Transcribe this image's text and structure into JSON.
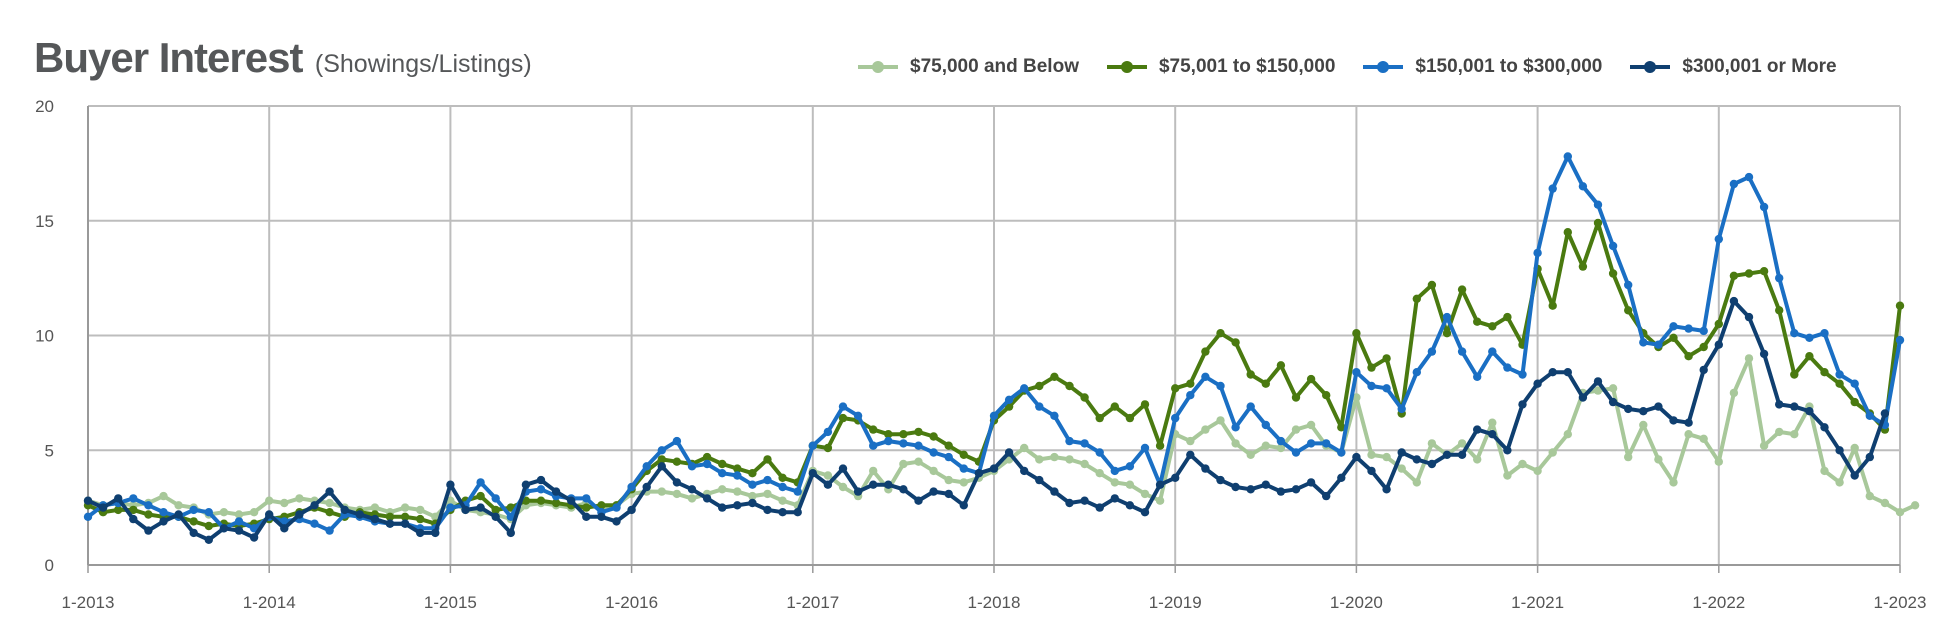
{
  "title": "Buyer Interest",
  "subtitle": "(Showings/Listings)",
  "legend": [
    {
      "label": "$75,000 and Below",
      "color": "#a8c89a"
    },
    {
      "label": "$75,001 to $150,000",
      "color": "#4a7a10"
    },
    {
      "label": "$150,001 to $300,000",
      "color": "#1a6fc4"
    },
    {
      "label": "$300,001 or More",
      "color": "#0f3f70"
    }
  ],
  "chart_data": {
    "type": "line",
    "ylim": [
      0,
      20
    ],
    "yticks": [
      "0",
      "5",
      "10",
      "15",
      "20"
    ],
    "x_labels": [
      "1-2013",
      "1-2014",
      "1-2015",
      "1-2016",
      "1-2017",
      "1-2018",
      "1-2019",
      "1-2020",
      "1-2021",
      "1-2022",
      "1-2023"
    ],
    "x_start": "2013-01",
    "x_end": "2023-01",
    "grid": true,
    "legend_position": "top-right",
    "series": [
      {
        "name": "$75,000 and Below",
        "color": "#a8c89a",
        "values": [
          2.8,
          2.6,
          2.7,
          2.6,
          2.7,
          3.0,
          2.6,
          2.5,
          2.2,
          2.3,
          2.2,
          2.3,
          2.8,
          2.7,
          2.9,
          2.8,
          2.7,
          2.5,
          2.4,
          2.5,
          2.3,
          2.5,
          2.4,
          2.1,
          2.8,
          2.4,
          2.3,
          2.2,
          2.0,
          2.6,
          2.7,
          2.6,
          2.5,
          2.7,
          2.4,
          2.6,
          3.1,
          3.2,
          3.2,
          3.1,
          2.9,
          3.1,
          3.3,
          3.2,
          3.0,
          3.1,
          2.8,
          2.6,
          4.1,
          3.9,
          3.4,
          3.0,
          4.1,
          3.3,
          4.4,
          4.5,
          4.1,
          3.7,
          3.6,
          3.8,
          4.1,
          4.6,
          5.1,
          4.6,
          4.7,
          4.6,
          4.4,
          4.0,
          3.6,
          3.5,
          3.1,
          2.8,
          5.7,
          5.4,
          5.9,
          6.3,
          5.3,
          4.8,
          5.2,
          5.1,
          5.9,
          6.1,
          5.2,
          4.9,
          7.3,
          4.8,
          4.7,
          4.2,
          3.6,
          5.3,
          4.8,
          5.3,
          4.6,
          6.2,
          3.9,
          4.4,
          4.1,
          4.9,
          5.7,
          7.5,
          7.6,
          7.7,
          4.7,
          6.1,
          4.6,
          3.6,
          5.7,
          5.5,
          4.5,
          7.5,
          9.0,
          5.2,
          5.8,
          5.7,
          6.9,
          4.1,
          3.6,
          5.1,
          3.0,
          2.7,
          2.3,
          2.6
        ]
      },
      {
        "name": "$75,001 to $150,000",
        "color": "#4a7a10",
        "values": [
          2.6,
          2.3,
          2.4,
          2.4,
          2.2,
          2.1,
          2.1,
          1.9,
          1.7,
          1.8,
          1.7,
          1.8,
          2.0,
          2.1,
          2.3,
          2.5,
          2.3,
          2.1,
          2.3,
          2.2,
          2.1,
          2.1,
          2.0,
          1.8,
          2.4,
          2.8,
          3.0,
          2.4,
          2.5,
          2.8,
          2.8,
          2.7,
          2.6,
          2.5,
          2.6,
          2.6,
          3.3,
          4.1,
          4.6,
          4.5,
          4.4,
          4.7,
          4.4,
          4.2,
          4.0,
          4.6,
          3.8,
          3.6,
          5.2,
          5.1,
          6.4,
          6.3,
          5.9,
          5.7,
          5.7,
          5.8,
          5.6,
          5.2,
          4.8,
          4.5,
          6.3,
          6.9,
          7.6,
          7.8,
          8.2,
          7.8,
          7.3,
          6.4,
          6.9,
          6.4,
          7.0,
          5.2,
          7.7,
          7.9,
          9.3,
          10.1,
          9.7,
          8.3,
          7.9,
          8.7,
          7.3,
          8.1,
          7.4,
          6.0,
          10.1,
          8.6,
          9.0,
          6.6,
          11.6,
          12.2,
          10.1,
          12.0,
          10.6,
          10.4,
          10.8,
          9.6,
          12.9,
          11.3,
          14.5,
          13.0,
          14.9,
          12.7,
          11.1,
          10.1,
          9.5,
          9.9,
          9.1,
          9.5,
          10.5,
          12.6,
          12.7,
          12.8,
          11.1,
          8.3,
          9.1,
          8.4,
          7.9,
          7.1,
          6.6,
          5.9,
          11.3
        ]
      },
      {
        "name": "$150,001 to $300,000",
        "color": "#1a6fc4",
        "values": [
          2.1,
          2.6,
          2.7,
          2.9,
          2.6,
          2.3,
          2.1,
          2.4,
          2.3,
          1.6,
          1.9,
          1.6,
          2.1,
          1.9,
          2.0,
          1.8,
          1.5,
          2.2,
          2.1,
          1.9,
          1.8,
          1.8,
          1.6,
          1.6,
          2.5,
          2.6,
          3.6,
          2.9,
          2.1,
          3.2,
          3.3,
          3.0,
          2.9,
          2.9,
          2.3,
          2.5,
          3.4,
          4.3,
          5.0,
          5.4,
          4.3,
          4.4,
          4.0,
          3.9,
          3.5,
          3.7,
          3.4,
          3.2,
          5.2,
          5.8,
          6.9,
          6.5,
          5.2,
          5.4,
          5.3,
          5.2,
          4.9,
          4.7,
          4.2,
          4.0,
          6.5,
          7.2,
          7.7,
          6.9,
          6.5,
          5.4,
          5.3,
          4.9,
          4.1,
          4.3,
          5.1,
          3.5,
          6.4,
          7.4,
          8.2,
          7.8,
          6.0,
          6.9,
          6.1,
          5.4,
          4.9,
          5.3,
          5.3,
          4.9,
          8.4,
          7.8,
          7.7,
          6.8,
          8.4,
          9.3,
          10.8,
          9.3,
          8.2,
          9.3,
          8.6,
          8.3,
          13.6,
          16.4,
          17.8,
          16.5,
          15.7,
          13.9,
          12.2,
          9.7,
          9.6,
          10.4,
          10.3,
          10.2,
          14.2,
          16.6,
          16.9,
          15.6,
          12.5,
          10.1,
          9.9,
          10.1,
          8.3,
          7.9,
          6.5,
          6.1,
          9.8
        ]
      },
      {
        "name": "$300,001 or More",
        "color": "#0f3f70",
        "values": [
          2.8,
          2.5,
          2.9,
          2.0,
          1.5,
          1.9,
          2.2,
          1.4,
          1.1,
          1.6,
          1.5,
          1.2,
          2.2,
          1.6,
          2.2,
          2.6,
          3.2,
          2.4,
          2.2,
          2.0,
          1.8,
          1.8,
          1.4,
          1.4,
          3.5,
          2.4,
          2.5,
          2.1,
          1.4,
          3.5,
          3.7,
          3.2,
          2.8,
          2.1,
          2.1,
          1.9,
          2.4,
          3.4,
          4.3,
          3.6,
          3.3,
          2.9,
          2.5,
          2.6,
          2.7,
          2.4,
          2.3,
          2.3,
          4.0,
          3.5,
          4.2,
          3.2,
          3.5,
          3.5,
          3.3,
          2.8,
          3.2,
          3.1,
          2.6,
          4.0,
          4.2,
          4.9,
          4.1,
          3.7,
          3.2,
          2.7,
          2.8,
          2.5,
          2.9,
          2.6,
          2.3,
          3.5,
          3.8,
          4.8,
          4.2,
          3.7,
          3.4,
          3.3,
          3.5,
          3.2,
          3.3,
          3.6,
          3.0,
          3.8,
          4.7,
          4.1,
          3.3,
          4.9,
          4.6,
          4.4,
          4.8,
          4.8,
          5.9,
          5.7,
          5.0,
          7.0,
          7.9,
          8.4,
          8.4,
          7.3,
          8.0,
          7.1,
          6.8,
          6.7,
          6.9,
          6.3,
          6.2,
          8.5,
          9.6,
          11.5,
          10.8,
          9.2,
          7.0,
          6.9,
          6.7,
          6.0,
          5.0,
          3.9,
          4.7,
          6.6
        ]
      }
    ]
  }
}
